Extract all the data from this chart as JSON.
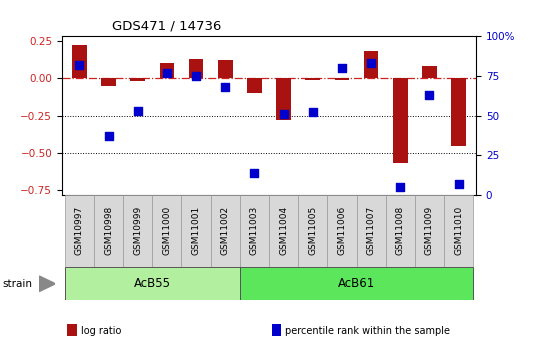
{
  "title": "GDS471 / 14736",
  "samples": [
    "GSM10997",
    "GSM10998",
    "GSM10999",
    "GSM11000",
    "GSM11001",
    "GSM11002",
    "GSM11003",
    "GSM11004",
    "GSM11005",
    "GSM11006",
    "GSM11007",
    "GSM11008",
    "GSM11009",
    "GSM11010"
  ],
  "log_ratio": [
    0.22,
    -0.05,
    -0.02,
    0.1,
    0.13,
    0.12,
    -0.1,
    -0.28,
    -0.01,
    -0.01,
    0.18,
    -0.57,
    0.08,
    -0.45
  ],
  "percentile_rank": [
    82,
    37,
    53,
    77,
    75,
    68,
    14,
    51,
    52,
    80,
    83,
    5,
    63,
    7
  ],
  "groups": [
    {
      "label": "AcB55",
      "start": 0,
      "end": 5,
      "color": "#b2f0a0"
    },
    {
      "label": "AcB61",
      "start": 6,
      "end": 13,
      "color": "#5ce65c"
    }
  ],
  "bar_color": "#aa1111",
  "dot_color": "#0000cc",
  "ref_line_color": "#cc2222",
  "ylim_left": [
    -0.78,
    0.28
  ],
  "ylim_right": [
    0,
    100
  ],
  "yticks_left": [
    0.25,
    0.0,
    -0.25,
    -0.5,
    -0.75
  ],
  "yticks_right": [
    100,
    75,
    50,
    25,
    0
  ],
  "hlines": [
    -0.25,
    -0.5
  ],
  "xtick_bg": "#d8d8d8",
  "legend_items": [
    {
      "label": "log ratio",
      "color": "#aa1111"
    },
    {
      "label": "percentile rank within the sample",
      "color": "#0000cc"
    }
  ]
}
